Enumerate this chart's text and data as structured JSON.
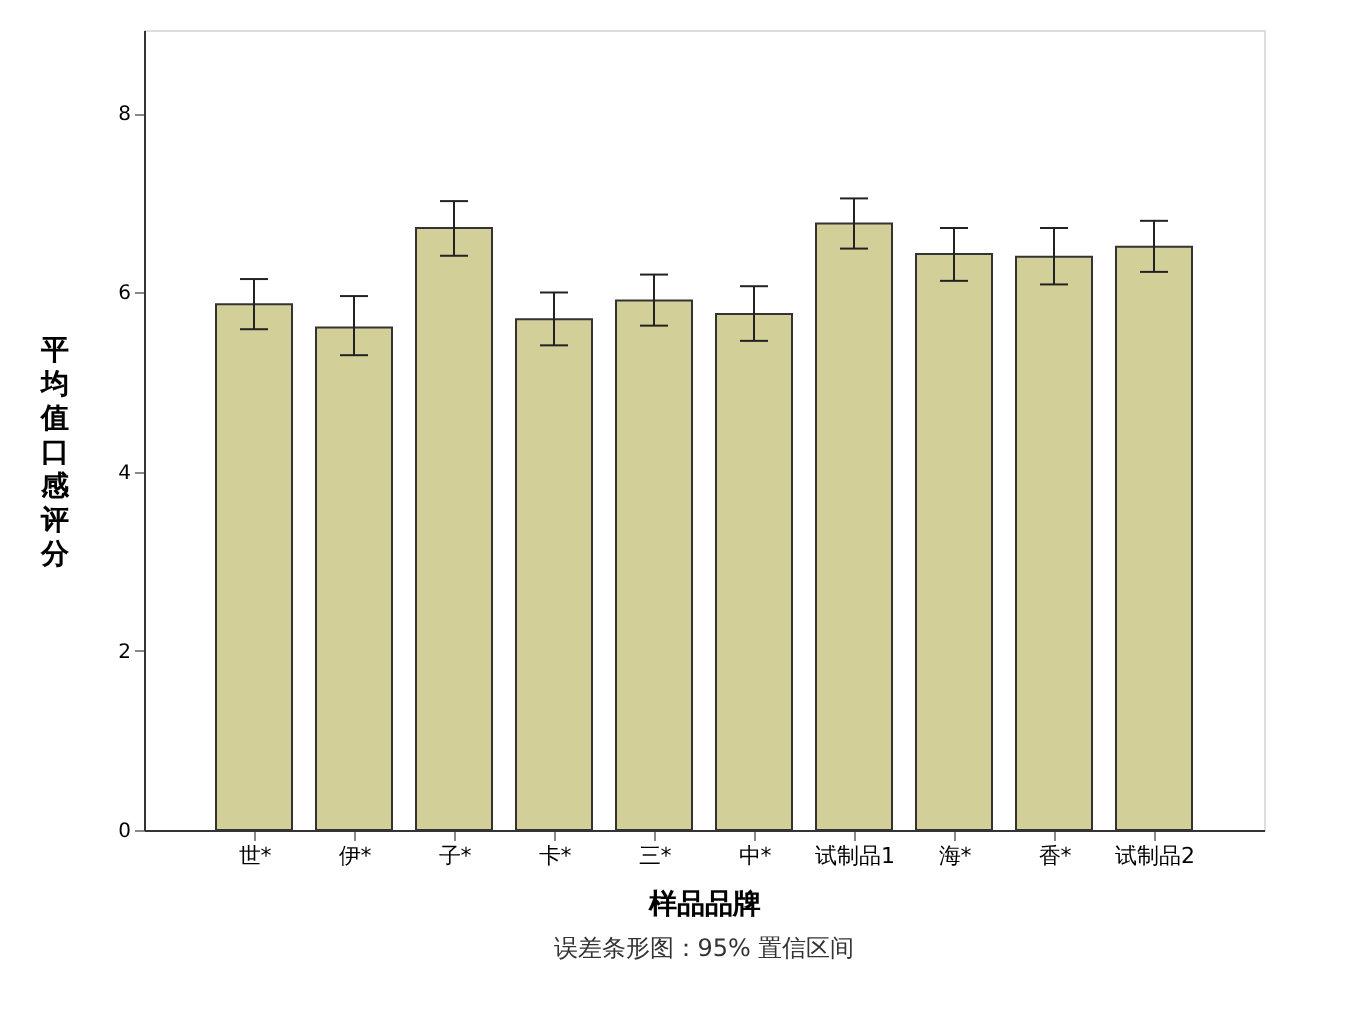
{
  "chart_data": {
    "type": "bar",
    "categories": [
      "世*",
      "伊*",
      "子*",
      "卡*",
      "三*",
      "中*",
      "试制品1",
      "海*",
      "香*",
      "试制品2"
    ],
    "values": [
      5.87,
      5.61,
      6.72,
      5.7,
      5.91,
      5.76,
      6.77,
      6.43,
      6.4,
      6.51
    ],
    "errors": [
      [
        5.59,
        6.15
      ],
      [
        5.3,
        5.96
      ],
      [
        6.41,
        7.02
      ],
      [
        5.41,
        6.0
      ],
      [
        5.63,
        6.2
      ],
      [
        5.46,
        6.07
      ],
      [
        6.49,
        7.05
      ],
      [
        6.13,
        6.72
      ],
      [
        6.09,
        6.72
      ],
      [
        6.23,
        6.8
      ]
    ],
    "color": "#d3cf98",
    "xlabel": "样品品牌",
    "ylabel": "平均值口感评分",
    "ylim": [
      0,
      8.93
    ],
    "yticks": [
      0,
      2,
      4,
      6,
      8
    ],
    "grid": false,
    "annotations": [
      "误差条形图：95% 置信区间"
    ]
  }
}
